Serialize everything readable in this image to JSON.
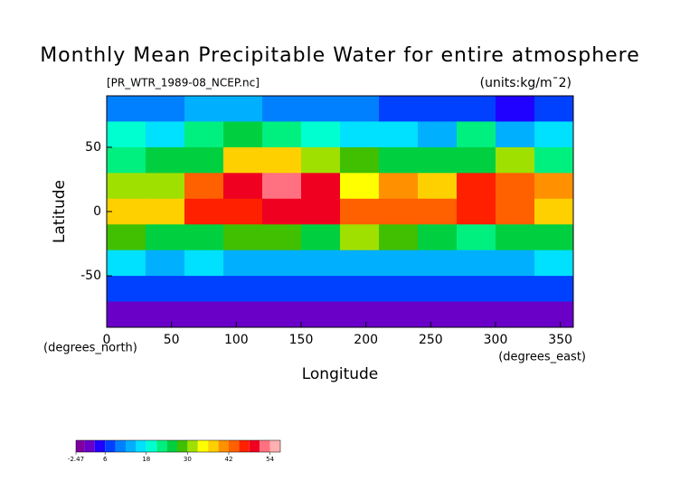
{
  "chart_data": {
    "type": "heatmap",
    "title": "Monthly Mean Precipitable Water for entire atmosphere",
    "subtitle": "[PR_WTR_1989-08_NCEP.nc]",
    "units": "(units:kg/m¯2)",
    "x_label": "Longitude",
    "y_label": "Latitude",
    "x_unit": "(degrees_east)",
    "y_unit": "(degrees_north)",
    "xlim": [
      0,
      360
    ],
    "ylim": [
      -90,
      90
    ],
    "xticks": [
      0,
      50,
      100,
      150,
      200,
      250,
      300,
      350
    ],
    "yticks": [
      -50,
      0,
      50
    ],
    "field": {
      "lon_edges": [
        0,
        30,
        60,
        90,
        120,
        150,
        180,
        210,
        240,
        270,
        300,
        330,
        360
      ],
      "lat_edges": [
        90,
        70,
        50,
        30,
        10,
        -10,
        -30,
        -50,
        -70,
        -90
      ],
      "values": [
        [
          10,
          10,
          12,
          12,
          10,
          10,
          10,
          8,
          8,
          8,
          4,
          8
        ],
        [
          18,
          15,
          22,
          24,
          22,
          20,
          15,
          15,
          14,
          22,
          12,
          16
        ],
        [
          22,
          26,
          24,
          38,
          36,
          30,
          27,
          25,
          25,
          26,
          30,
          22
        ],
        [
          30,
          30,
          44,
          50,
          52,
          48,
          35,
          40,
          38,
          45,
          42,
          40
        ],
        [
          38,
          38,
          45,
          46,
          50,
          48,
          42,
          44,
          44,
          45,
          42,
          38
        ],
        [
          28,
          24,
          25,
          28,
          27,
          24,
          30,
          28,
          26,
          22,
          26,
          26
        ],
        [
          15,
          14,
          15,
          14,
          12,
          14,
          14,
          14,
          14,
          12,
          14,
          15
        ],
        [
          7,
          7,
          7,
          7,
          7,
          7,
          7,
          7,
          7,
          7,
          7,
          7
        ],
        [
          1,
          1,
          1,
          1,
          1,
          1,
          1,
          1,
          1,
          1,
          1,
          1
        ]
      ]
    },
    "colorbar": {
      "levels": [
        -2.47,
        0,
        3,
        6,
        9,
        12,
        15,
        18,
        21,
        24,
        27,
        30,
        33,
        36,
        39,
        42,
        45,
        48,
        51,
        54,
        57
      ],
      "colors": [
        "#8000a0",
        "#6a00c8",
        "#2000ff",
        "#0040ff",
        "#0080ff",
        "#00b0ff",
        "#00e0ff",
        "#00ffd0",
        "#00f080",
        "#00d040",
        "#40c000",
        "#a0e000",
        "#ffff00",
        "#ffd000",
        "#ff9000",
        "#ff6000",
        "#ff2000",
        "#f00020",
        "#ff7080",
        "#ffb0b0"
      ],
      "ticks": [
        -2.47,
        6,
        18,
        30,
        42,
        54
      ]
    }
  }
}
